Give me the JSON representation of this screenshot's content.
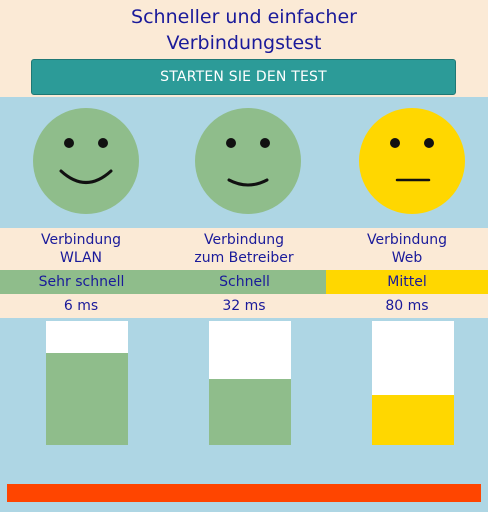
{
  "header": {
    "title": "Schneller und einfacher\nVerbindungstest",
    "start_button": "STARTEN SIE DEN TEST"
  },
  "colors": {
    "good": "#8fbd8b",
    "medium": "#ffd700",
    "bad": "#ff4500"
  },
  "connections": [
    {
      "label": "Verbindung\nWLAN",
      "status": "Sehr schnell",
      "latency": "6 ms",
      "face": "smiley-happy-icon",
      "level": 0.74,
      "color": "#8fbd8b"
    },
    {
      "label": "Verbindung\nzum Betreiber",
      "status": "Schnell",
      "latency": "32 ms",
      "face": "smiley-happy-icon",
      "level": 0.53,
      "color": "#8fbd8b"
    },
    {
      "label": "Verbindung\nWeb",
      "status": "Mittel",
      "latency": "80 ms",
      "face": "smiley-neutral-icon",
      "level": 0.4,
      "color": "#ffd700"
    }
  ]
}
